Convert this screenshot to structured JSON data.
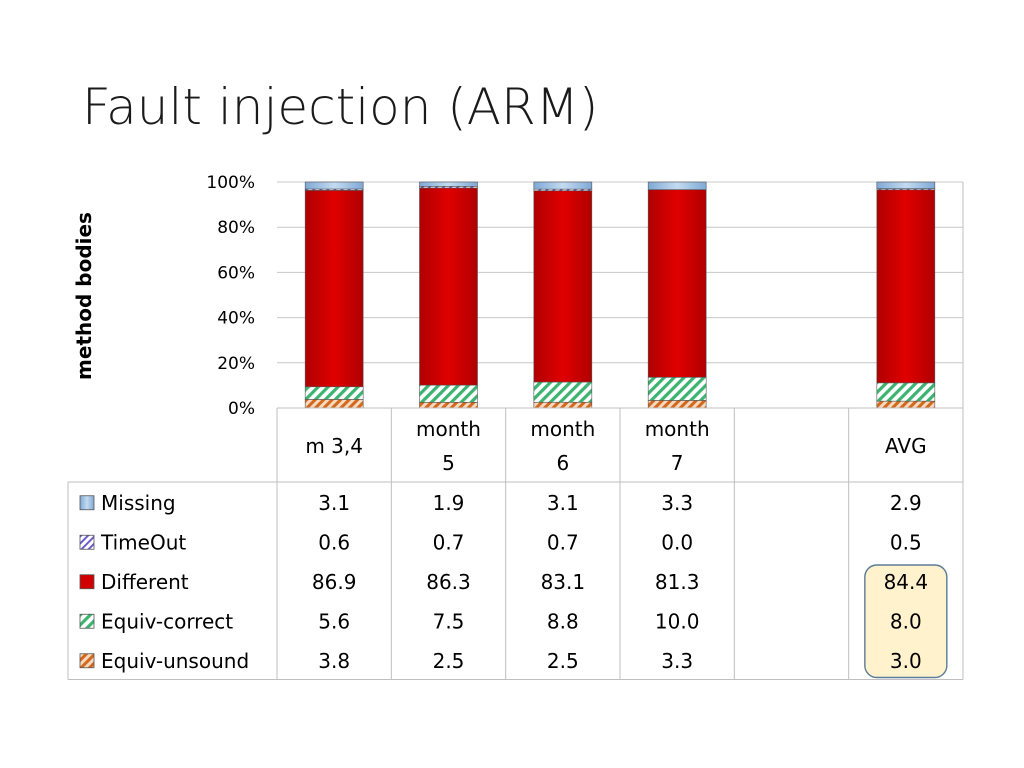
{
  "slide": {
    "title": "Fault injection (ARM)"
  },
  "chart_data": {
    "type": "bar",
    "stacked": true,
    "percent_stacked": true,
    "ylabel": "method bodies",
    "ylim": [
      0,
      100
    ],
    "y_ticks": [
      "0%",
      "20%",
      "40%",
      "60%",
      "80%",
      "100%"
    ],
    "grid": true,
    "legend_placement": "data-table-left",
    "columns": [
      {
        "label_lines": [
          "m 3,4"
        ],
        "has_data": true
      },
      {
        "label_lines": [
          "month",
          "5"
        ],
        "has_data": true
      },
      {
        "label_lines": [
          "month",
          "6"
        ],
        "has_data": true
      },
      {
        "label_lines": [
          "month",
          "7"
        ],
        "has_data": true
      },
      {
        "label_lines": [],
        "has_data": false
      },
      {
        "label_lines": [
          "AVG"
        ],
        "has_data": true
      }
    ],
    "series": [
      {
        "name": "Missing",
        "color": "#9dc3e6",
        "pattern": "solid-blue",
        "values": [
          "3.1",
          "1.9",
          "3.1",
          "3.3",
          "",
          "2.9"
        ]
      },
      {
        "name": "TimeOut",
        "color": "#7b68b5",
        "pattern": "purple-hatch",
        "values": [
          "0.6",
          "0.7",
          "0.7",
          "0.0",
          "",
          "0.5"
        ]
      },
      {
        "name": "Different",
        "color": "#d00000",
        "pattern": "solid-red",
        "values": [
          "86.9",
          "86.3",
          "83.1",
          "81.3",
          "",
          "84.4"
        ]
      },
      {
        "name": "Equiv-correct",
        "color": "#3cb371",
        "pattern": "green-hatch",
        "values": [
          "5.6",
          "7.5",
          "8.8",
          "10.0",
          "",
          "8.0"
        ]
      },
      {
        "name": "Equiv-unsound",
        "color": "#e07b39",
        "pattern": "orange-hatch",
        "values": [
          "3.8",
          "2.5",
          "2.5",
          "3.3",
          "",
          "3.0"
        ]
      }
    ],
    "highlight": {
      "column": 5,
      "series_from": 2,
      "series_to": 4,
      "color": "#fff2cc",
      "border": "#5b7c99"
    }
  }
}
